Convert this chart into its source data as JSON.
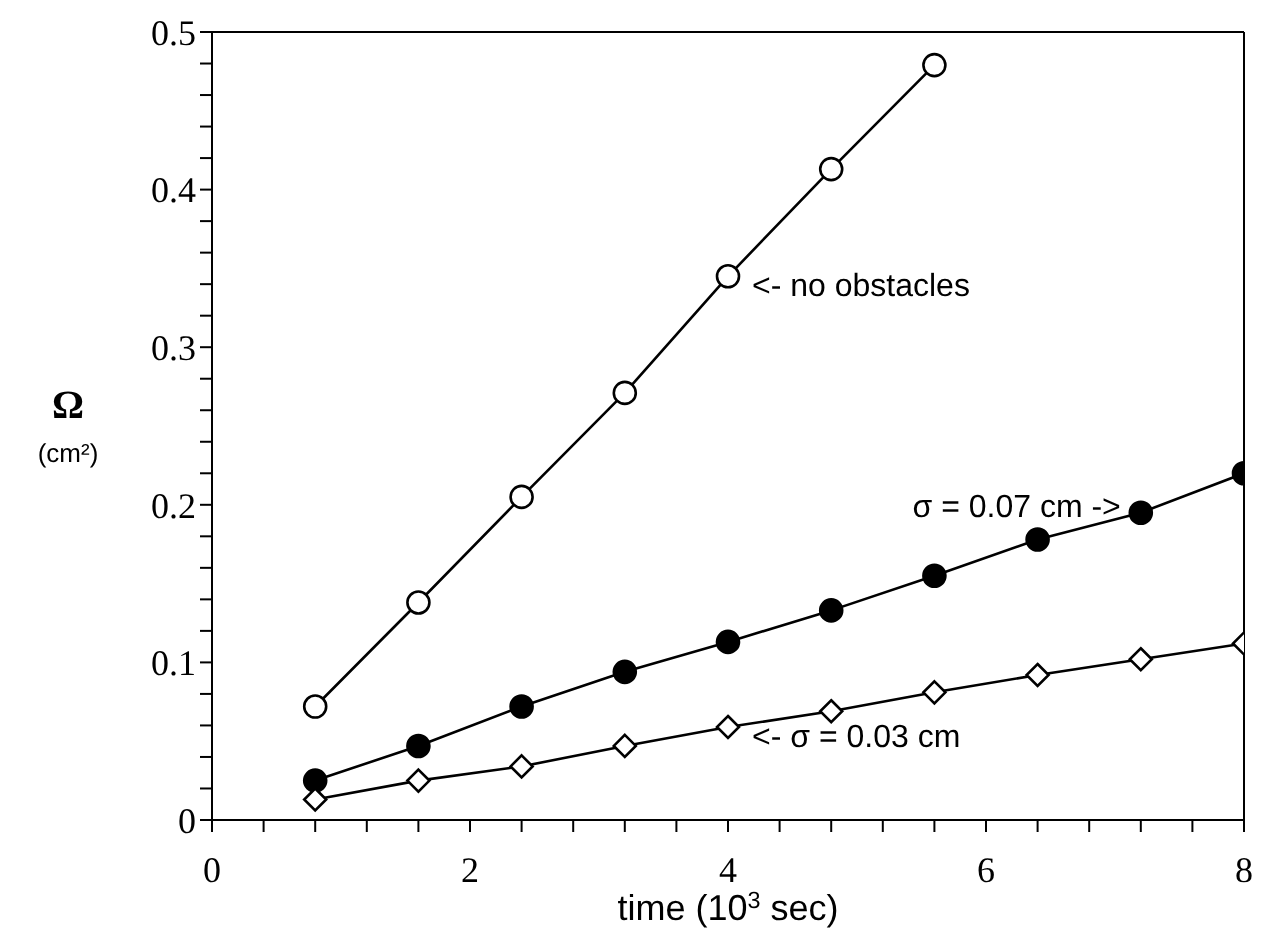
{
  "chart_data": {
    "type": "line",
    "xlabel": "time (10$^{3}$ sec)",
    "ylabel": "Ω (cm²)",
    "x": [
      0.8,
      1.6,
      2.4,
      3.2,
      4.0,
      4.8,
      5.6,
      6.4,
      7.2,
      8.0
    ],
    "series": [
      {
        "color": "#000000",
        "marker": "circle",
        "values": [
          0.072,
          0.138,
          0.205,
          0.271,
          0.345,
          0.413,
          0.479,
          null,
          null,
          null
        ]
      },
      {
        "color": "#000000",
        "marker": "circle",
        "values": [
          0.025,
          0.047,
          0.072,
          0.094,
          0.113,
          0.133,
          0.155,
          0.178,
          0.195,
          0.22
        ]
      },
      {
        "color": "#000000",
        "marker": "diamond",
        "values": [
          0.013,
          0.025,
          0.034,
          0.047,
          0.059,
          0.069,
          0.081,
          0.092,
          0.102,
          0.112
        ]
      }
    ],
    "annotations": [
      "<- no obstacles",
      "σ = 0.07 cm  ->",
      "<- σ = 0.03 cm"
    ],
    "xlim": [
      0,
      8
    ],
    "xticks": [
      0,
      {
        "value": 0.4,
        "label": null
      },
      {
        "value": 0.8,
        "label": null
      },
      {
        "value": 1.2,
        "label": null
      },
      {
        "value": 1.6,
        "label": null
      },
      2,
      {
        "value": 2.4,
        "label": null
      },
      {
        "value": 2.8,
        "label": null
      },
      {
        "value": 3.2,
        "label": null
      },
      {
        "value": 3.6,
        "label": null
      },
      4,
      {
        "value": 4.4,
        "label": null
      },
      {
        "value": 4.8,
        "label": null
      },
      {
        "value": 5.2,
        "label": null
      },
      {
        "value": 5.6,
        "label": null
      },
      6,
      {
        "value": 6.4,
        "label": null
      },
      {
        "value": 6.8,
        "label": null
      },
      {
        "value": 7.2,
        "label": null
      },
      {
        "value": 7.6,
        "label": null
      },
      8
    ],
    "ylim": [
      0,
      0.5
    ],
    "yticks": [
      0,
      {
        "value": 0.02,
        "label": null
      },
      {
        "value": 0.04,
        "label": null
      },
      {
        "value": 0.06,
        "label": null
      },
      {
        "value": 0.08,
        "label": null
      },
      0.1,
      {
        "value": 0.12,
        "label": null
      },
      {
        "value": 0.14,
        "label": null
      },
      {
        "value": 0.16,
        "label": null
      },
      {
        "value": 0.18,
        "label": null
      },
      0.2,
      {
        "value": 0.22,
        "label": null
      },
      {
        "value": 0.24,
        "label": null
      },
      {
        "value": 0.26,
        "label": null
      },
      {
        "value": 0.28,
        "label": null
      },
      0.3,
      {
        "value": 0.32,
        "label": null
      },
      {
        "value": 0.34,
        "label": null
      },
      {
        "value": 0.36,
        "label": null
      },
      {
        "value": 0.38,
        "label": null
      },
      0.4,
      {
        "value": 0.42,
        "label": null
      },
      {
        "value": 0.44,
        "label": null
      },
      {
        "value": 0.46,
        "label": null
      },
      {
        "value": 0.48,
        "label": null
      },
      0.5
    ],
    "line_style": "solid"
  }
}
